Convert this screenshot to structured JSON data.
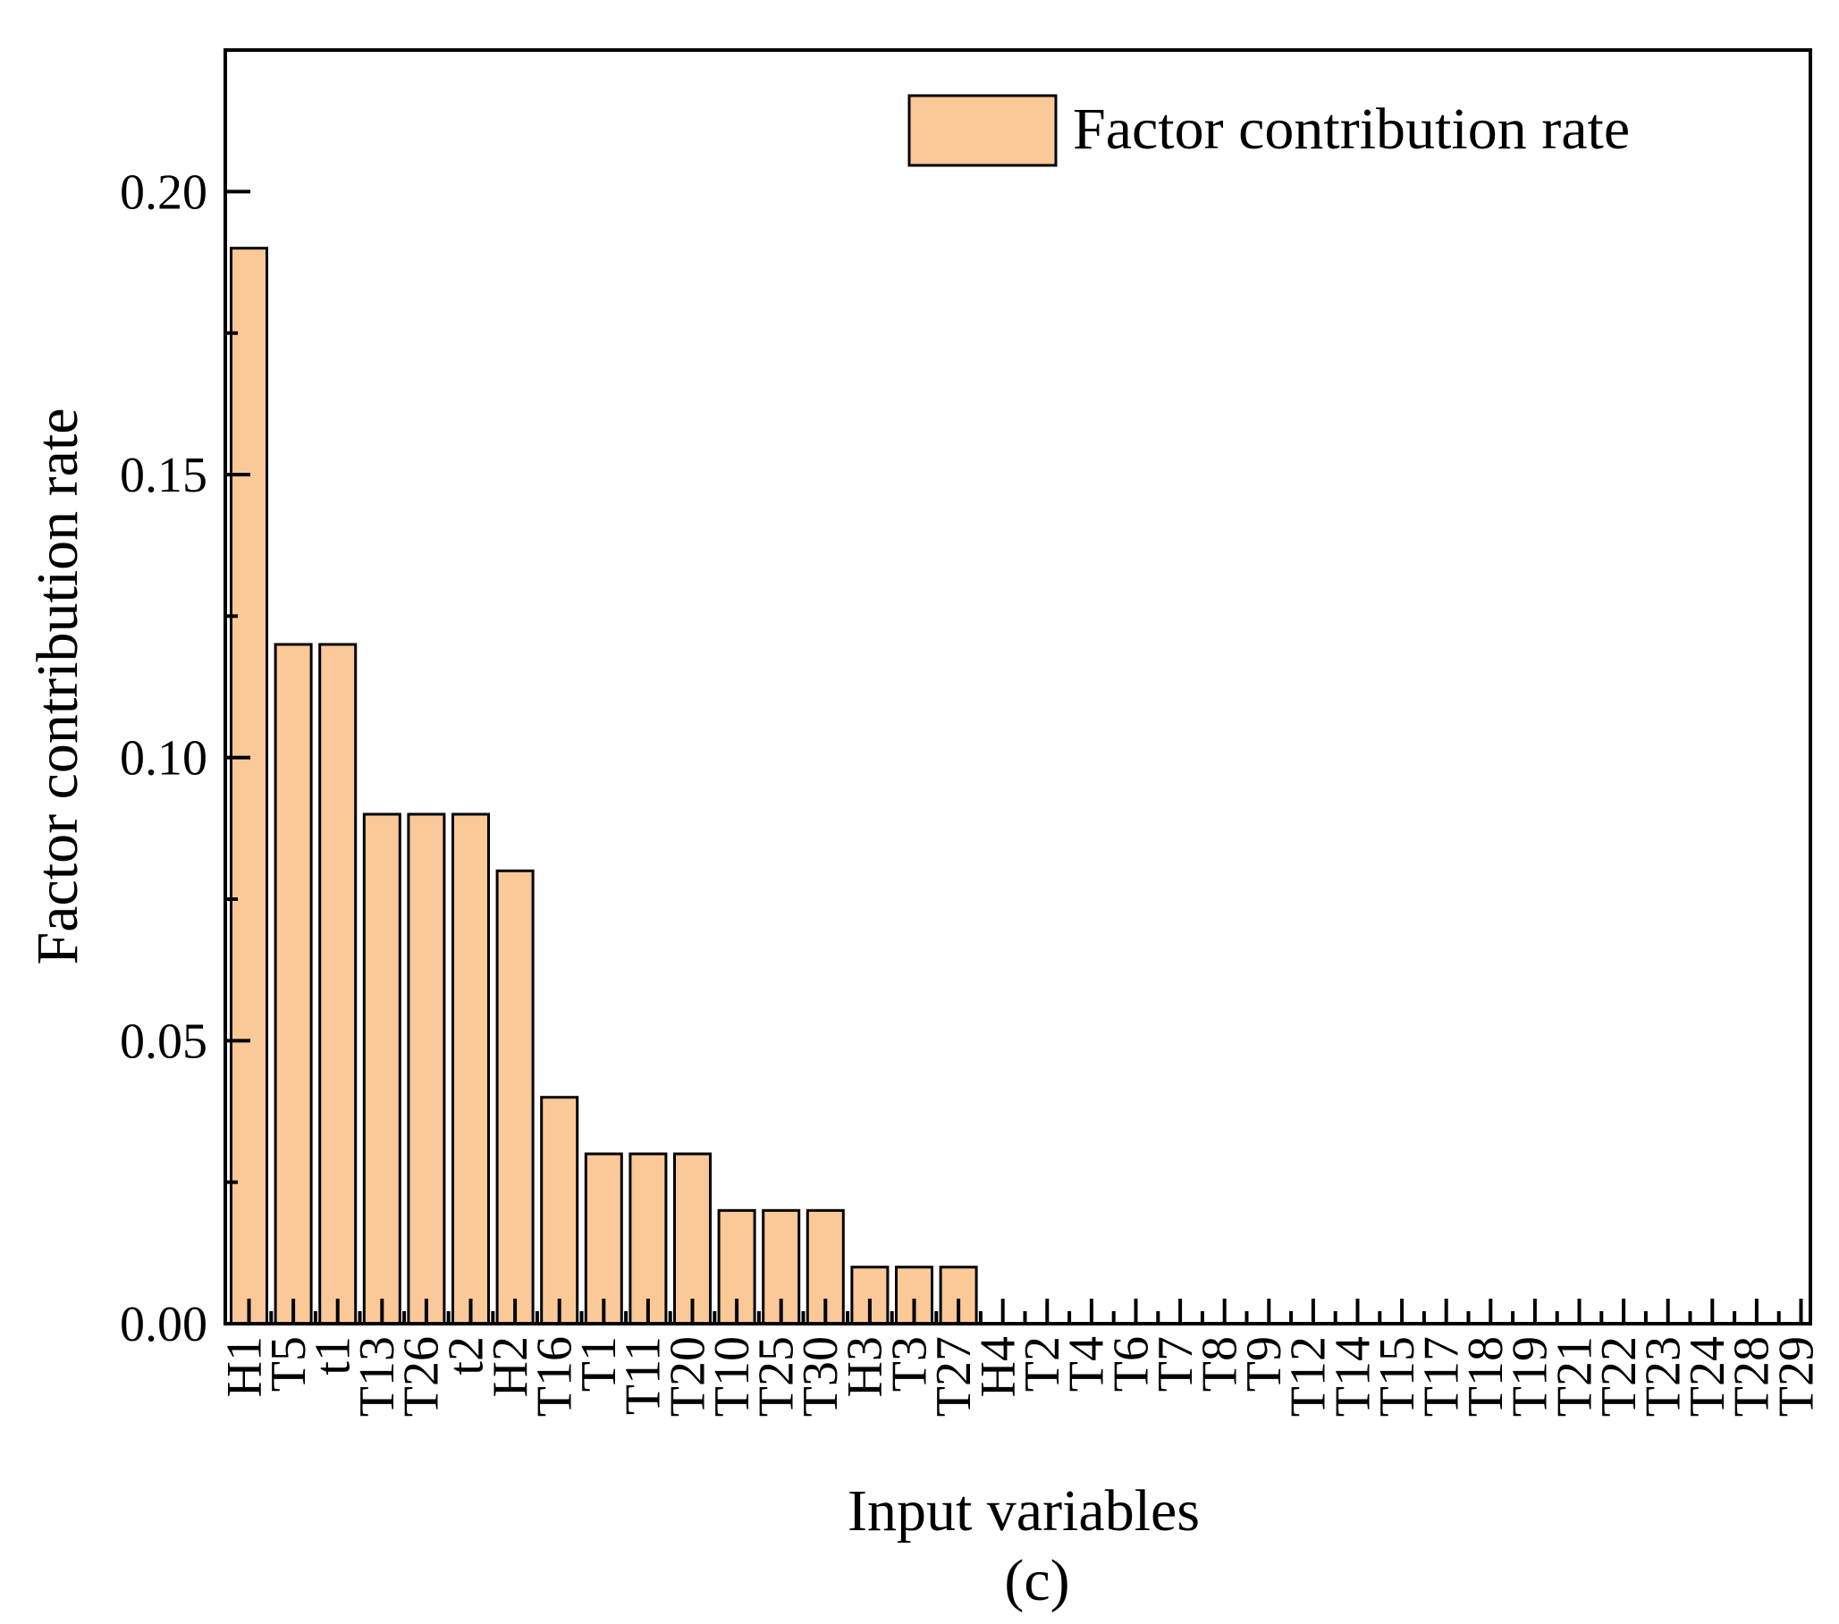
{
  "chart_data": {
    "type": "bar",
    "title": "",
    "xlabel": "Input variables",
    "ylabel": "Factor contribution rate",
    "caption": "(c)",
    "legend": {
      "label": "Factor contribution rate",
      "placement": "top-right"
    },
    "ylim": [
      0,
      0.225
    ],
    "yticks": [
      {
        "value": 0.0,
        "label": "0.00"
      },
      {
        "value": 0.05,
        "label": "0.05"
      },
      {
        "value": 0.1,
        "label": "0.10"
      },
      {
        "value": 0.15,
        "label": "0.15"
      },
      {
        "value": 0.2,
        "label": "0.20"
      }
    ],
    "categories": [
      "H1",
      "T5",
      "t1",
      "T13",
      "T26",
      "t2",
      "H2",
      "T16",
      "T1",
      "T11",
      "T20",
      "T10",
      "T25",
      "T30",
      "H3",
      "T3",
      "T27",
      "H4",
      "T2",
      "T4",
      "T6",
      "T7",
      "T8",
      "T9",
      "T12",
      "T14",
      "T15",
      "T17",
      "T18",
      "T19",
      "T21",
      "T22",
      "T23",
      "T24",
      "T28",
      "T29"
    ],
    "values": [
      0.19,
      0.12,
      0.12,
      0.09,
      0.09,
      0.09,
      0.08,
      0.04,
      0.03,
      0.03,
      0.03,
      0.02,
      0.02,
      0.02,
      0.01,
      0.01,
      0.01,
      0,
      0,
      0,
      0,
      0,
      0,
      0,
      0,
      0,
      0,
      0,
      0,
      0,
      0,
      0,
      0,
      0,
      0,
      0
    ],
    "colors": {
      "bar_fill": "#FBC897",
      "bar_stroke": "#000000",
      "axis": "#000000"
    }
  }
}
